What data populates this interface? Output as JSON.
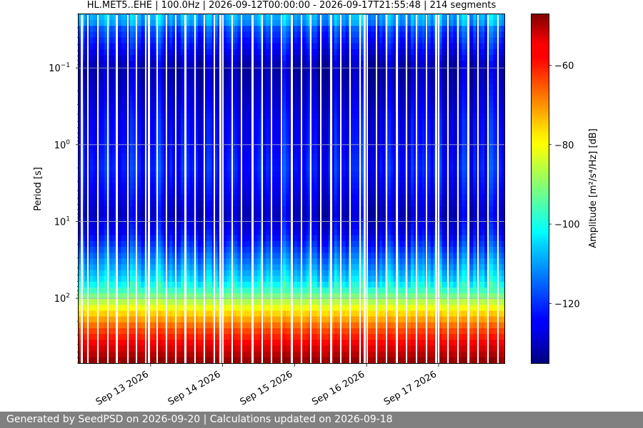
{
  "chart_data": {
    "type": "heatmap",
    "title": "HL.MET5..EHE | 100.0Hz | 2026-09-12T00:00:00 - 2026-09-17T21:55:48 | 214 segments",
    "ylabel": "Period [s]",
    "colorbar_label": "Amplitude [m²/s⁴/Hz] [dB]",
    "colormap": "jet",
    "y_scale": "log",
    "y_inverted": true,
    "ylim": [
      0.02,
      700
    ],
    "xlim": [
      "2026-09-12T00:00:00",
      "2026-09-17T21:55:48"
    ],
    "clim": [
      -135,
      -47
    ],
    "x_ticks": [
      "Sep 13 2026",
      "Sep 14 2026",
      "Sep 15 2026",
      "Sep 16 2026",
      "Sep 17 2026"
    ],
    "y_ticks": [
      {
        "base": "10",
        "exp": "−1"
      },
      {
        "base": "10",
        "exp": "0"
      },
      {
        "base": "10",
        "exp": "1"
      },
      {
        "base": "10",
        "exp": "2"
      }
    ],
    "colorbar_ticks": [
      "−60",
      "−80",
      "−100",
      "−120"
    ],
    "grid": true,
    "profile": {
      "period_s": [
        0.025,
        0.03,
        0.1,
        0.3,
        0.5,
        1,
        2,
        4,
        8,
        15,
        30,
        60,
        100,
        150,
        250,
        400,
        700
      ],
      "amplitude_db": [
        -110,
        -118,
        -132,
        -128,
        -126,
        -125,
        -123,
        -126,
        -130,
        -125,
        -115,
        -105,
        -90,
        -78,
        -65,
        -57,
        -48
      ]
    }
  },
  "footer": {
    "text": "Generated by SeedPSD on 2026-09-20 | Calculations updated on 2026-09-18"
  }
}
